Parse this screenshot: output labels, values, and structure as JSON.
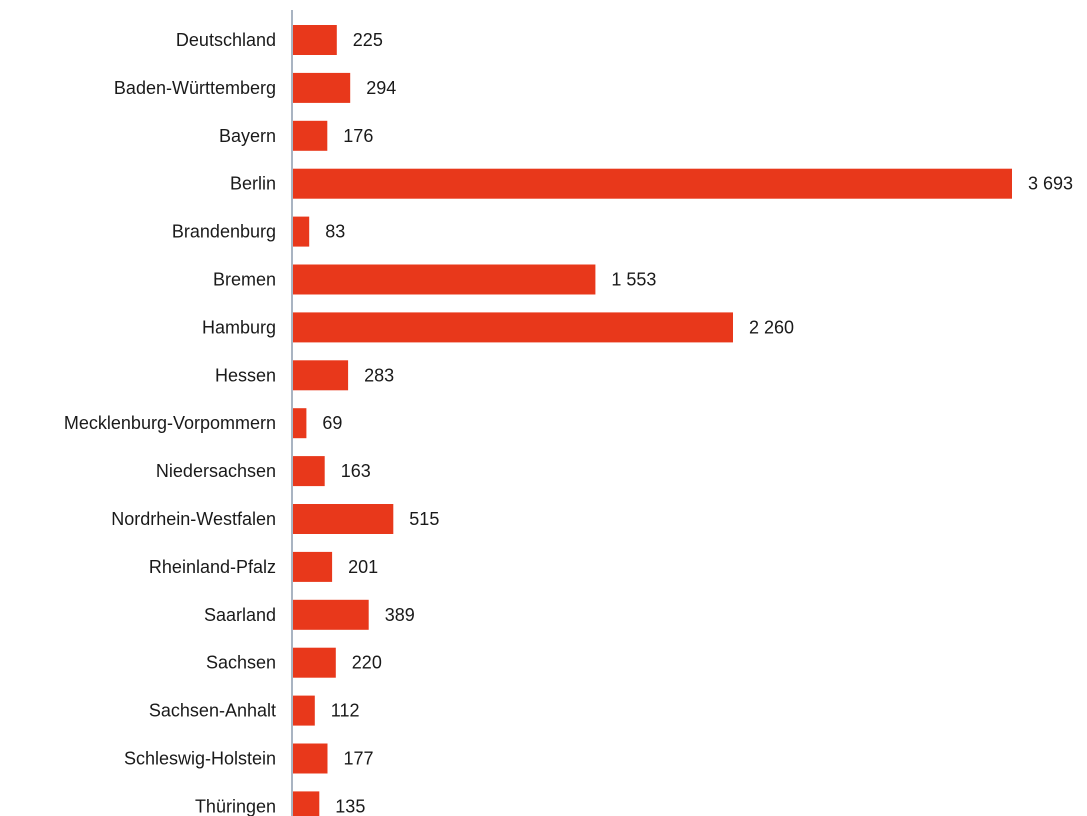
{
  "chart_data": {
    "type": "bar",
    "orientation": "horizontal",
    "title": "",
    "xlabel": "",
    "ylabel": "",
    "bar_color": "#e8381b",
    "axis_color": "#a9b4c2",
    "grid": false,
    "legend": "none",
    "xlim": [
      0,
      3693
    ],
    "categories": [
      "Deutschland",
      "Baden-Württemberg",
      "Bayern",
      "Berlin",
      "Brandenburg",
      "Bremen",
      "Hamburg",
      "Hessen",
      "Mecklenburg-Vorpommern",
      "Niedersachsen",
      "Nordrhein-Westfalen",
      "Rheinland-Pfalz",
      "Saarland",
      "Sachsen",
      "Sachsen-Anhalt",
      "Schleswig-Holstein",
      "Thüringen"
    ],
    "values": [
      225,
      294,
      176,
      3693,
      83,
      1553,
      2260,
      283,
      69,
      163,
      515,
      201,
      389,
      220,
      112,
      177,
      135
    ],
    "value_labels": [
      "225",
      "294",
      "176",
      "3 693",
      "83",
      "1 553",
      "2 260",
      "283",
      "69",
      "163",
      "515",
      "201",
      "389",
      "220",
      "112",
      "177",
      "135"
    ]
  }
}
